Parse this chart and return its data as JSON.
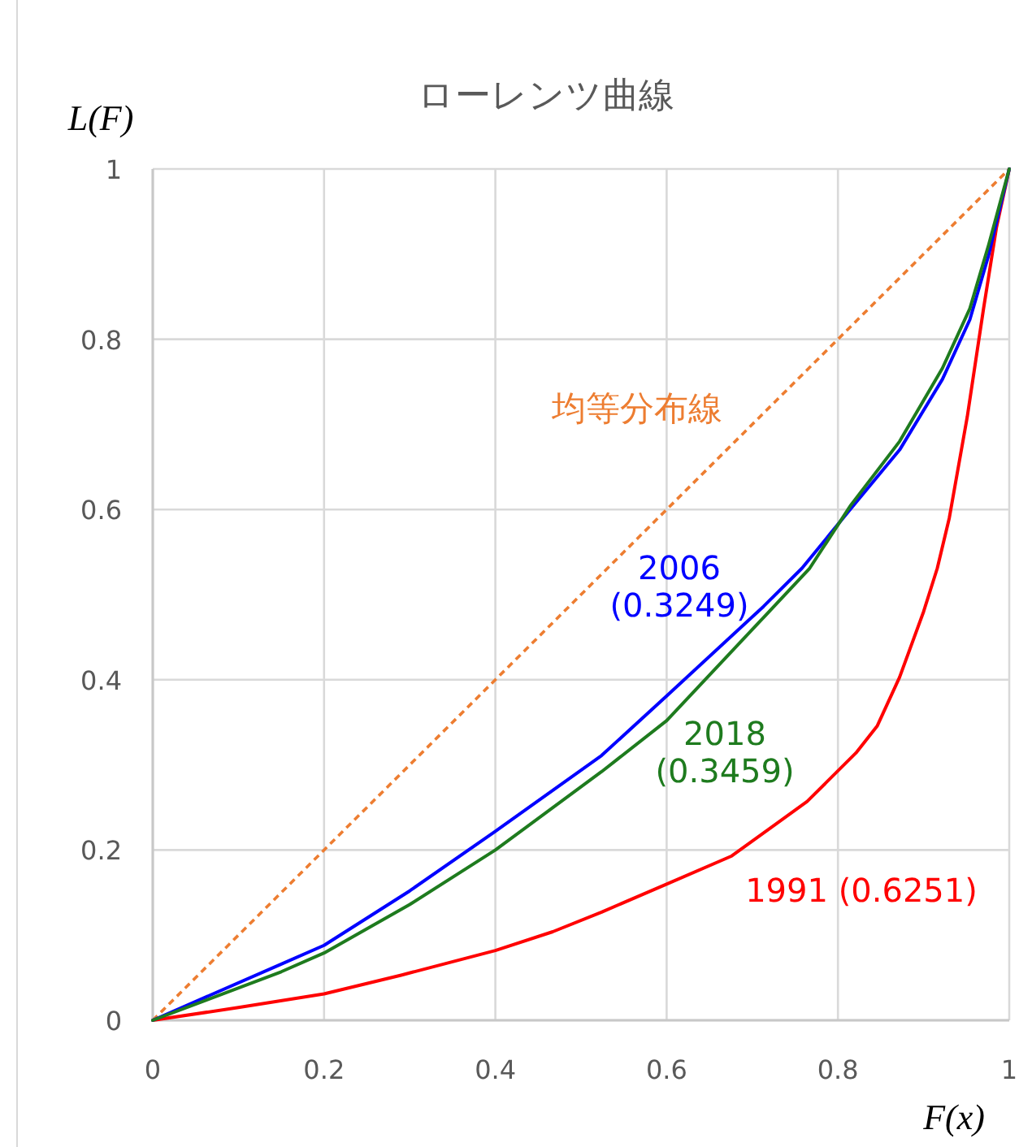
{
  "chart_data": {
    "type": "line",
    "title": "ローレンツ曲線",
    "xlabel": "F(x)",
    "ylabel": "L(F)",
    "xlim": [
      0,
      1
    ],
    "ylim": [
      0,
      1
    ],
    "xticks": [
      0,
      0.2,
      0.4,
      0.6,
      0.8,
      1
    ],
    "yticks": [
      0,
      0.2,
      0.4,
      0.6,
      0.8,
      1
    ],
    "grid": true,
    "series": [
      {
        "name": "均等分布線",
        "color": "#ed7d31",
        "line_style": "dashed",
        "x": [
          0,
          1
        ],
        "values": [
          0,
          1
        ]
      },
      {
        "name": "1991 (0.6251)",
        "color": "#ff0000",
        "x": [
          0,
          0.1,
          0.2,
          0.29,
          0.4,
          0.467,
          0.524,
          0.6,
          0.676,
          0.764,
          0.821,
          0.846,
          0.872,
          0.9,
          0.916,
          0.93,
          0.951,
          0.97,
          0.985,
          1
        ],
        "values": [
          0,
          0.015,
          0.031,
          0.053,
          0.082,
          0.104,
          0.127,
          0.16,
          0.193,
          0.257,
          0.314,
          0.346,
          0.403,
          0.48,
          0.531,
          0.59,
          0.709,
          0.836,
          0.931,
          1
        ]
      },
      {
        "name": "2006 (0.3249)",
        "color": "#0000ff",
        "x": [
          0,
          0.15,
          0.2,
          0.3,
          0.4,
          0.524,
          0.6,
          0.713,
          0.758,
          0.815,
          0.872,
          0.922,
          0.954,
          0.976,
          1
        ],
        "values": [
          0,
          0.066,
          0.088,
          0.152,
          0.222,
          0.311,
          0.381,
          0.486,
          0.531,
          0.601,
          0.67,
          0.753,
          0.823,
          0.899,
          1
        ]
      },
      {
        "name": "2018 (0.3459)",
        "color": "#1e7b1e",
        "x": [
          0,
          0.15,
          0.2,
          0.3,
          0.4,
          0.524,
          0.6,
          0.713,
          0.767,
          0.815,
          0.872,
          0.922,
          0.954,
          0.976,
          1
        ],
        "values": [
          0,
          0.057,
          0.079,
          0.136,
          0.2,
          0.292,
          0.352,
          0.473,
          0.531,
          0.605,
          0.68,
          0.766,
          0.836,
          0.911,
          1
        ]
      }
    ]
  }
}
